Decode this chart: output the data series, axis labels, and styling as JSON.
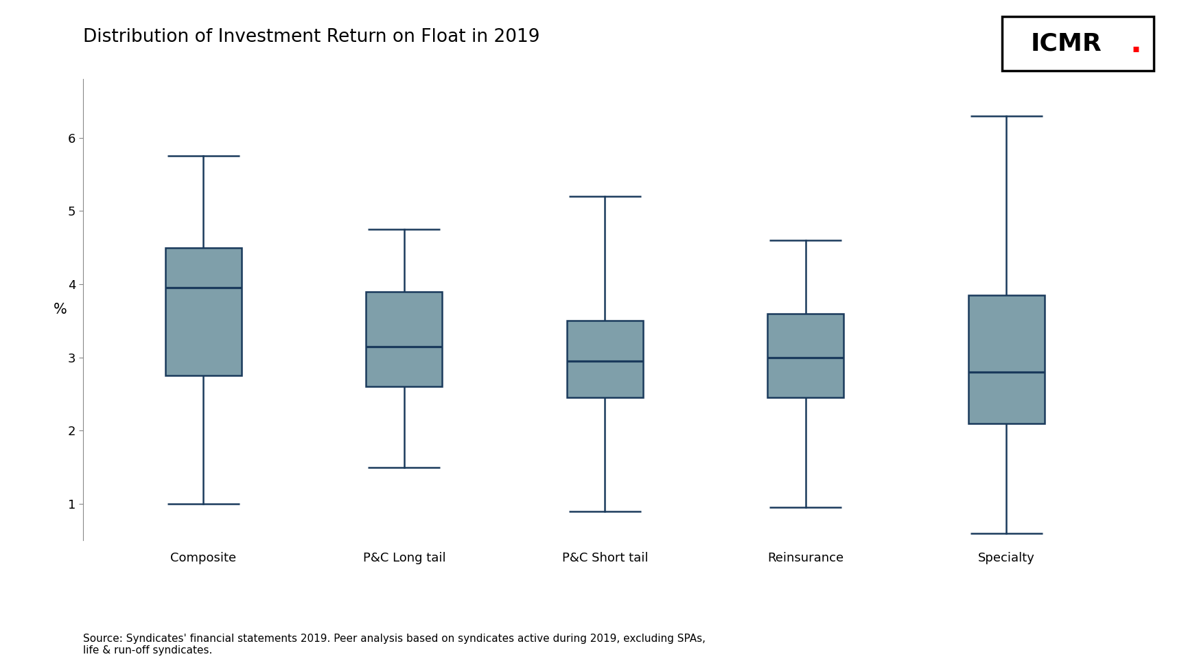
{
  "title": "Distribution of Investment Return on Float in 2019",
  "ylabel": "%",
  "categories": [
    "Composite",
    "P&C Long tail",
    "P&C Short tail",
    "Reinsurance",
    "Specialty"
  ],
  "box_data": [
    {
      "min": 1.0,
      "q1": 2.75,
      "median": 3.95,
      "q3": 4.5,
      "max": 5.75
    },
    {
      "min": 1.5,
      "q1": 2.6,
      "median": 3.15,
      "q3": 3.9,
      "max": 4.75
    },
    {
      "min": 0.9,
      "q1": 2.45,
      "median": 2.95,
      "q3": 3.5,
      "max": 5.2
    },
    {
      "min": 0.95,
      "q1": 2.45,
      "median": 3.0,
      "q3": 3.6,
      "max": 4.6
    },
    {
      "min": 0.6,
      "q1": 2.1,
      "median": 2.8,
      "q3": 3.85,
      "max": 6.3
    }
  ],
  "box_color": "#7f9faa",
  "box_edge_color": "#1a3a5c",
  "median_color": "#1a3a5c",
  "whisker_color": "#1a3a5c",
  "cap_color": "#1a3a5c",
  "background_color": "#ffffff",
  "ylim": [
    0.5,
    6.8
  ],
  "yticks": [
    1,
    2,
    3,
    4,
    5,
    6
  ],
  "title_fontsize": 19,
  "axis_label_fontsize": 15,
  "tick_fontsize": 13,
  "source_text": "Source: Syndicates' financial statements 2019. Peer analysis based on syndicates active during 2019, excluding SPAs,\nlife & run-off syndicates.",
  "box_width": 0.38,
  "linewidth": 1.8,
  "cap_size": 0.18
}
